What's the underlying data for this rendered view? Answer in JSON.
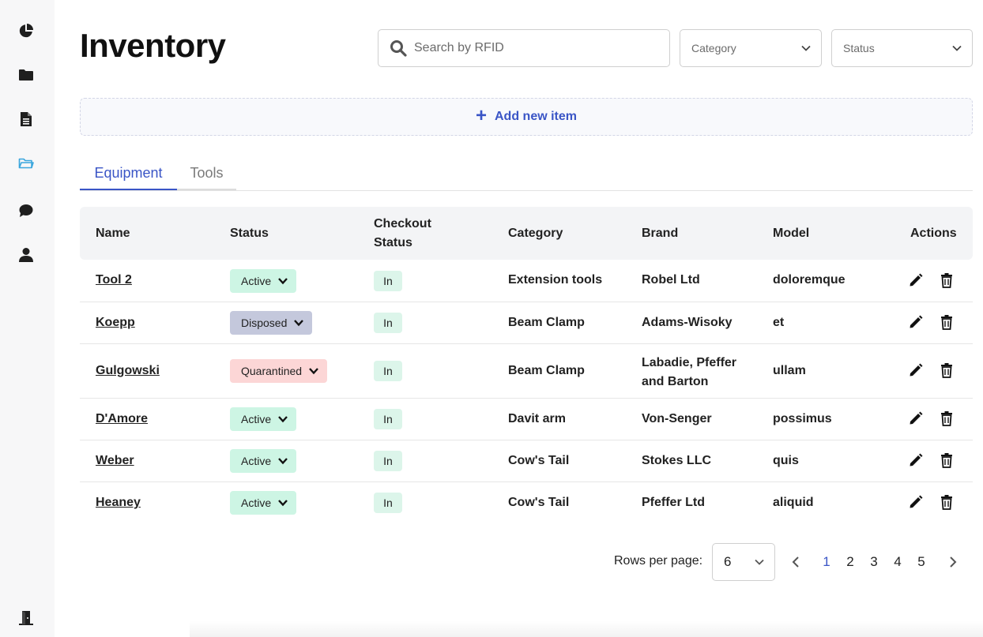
{
  "sidebar": {
    "items": [
      {
        "icon": "pie-chart-icon",
        "color": "#1f1f1f"
      },
      {
        "icon": "folder-icon",
        "color": "#1f1f1f"
      },
      {
        "icon": "document-icon",
        "color": "#1f1f1f"
      },
      {
        "icon": "folder-open-icon",
        "color": "#3aa6dd",
        "active": true
      },
      {
        "icon": "chat-icon",
        "color": "#1f1f1f"
      },
      {
        "icon": "user-icon",
        "color": "#1f1f1f"
      }
    ],
    "logout_icon": "door-exit-icon"
  },
  "header": {
    "title": "Inventory",
    "search_placeholder": "Search by RFID",
    "category_placeholder": "Category",
    "status_placeholder": "Status"
  },
  "add_item_label": "Add new item",
  "tabs": [
    {
      "label": "Equipment",
      "active": true
    },
    {
      "label": "Tools",
      "active": false
    }
  ],
  "table": {
    "columns": {
      "name": "Name",
      "status": "Status",
      "checkout_line1": "Checkout",
      "checkout_line2": "Status",
      "category": "Category",
      "brand": "Brand",
      "model": "Model",
      "actions": "Actions"
    },
    "rows": [
      {
        "name": "Tool 2",
        "status": "Active",
        "checkout": "In",
        "category": "Extension tools",
        "brand_line1": "Robel Ltd",
        "brand_line2": "",
        "model": "doloremque"
      },
      {
        "name": "Koepp",
        "status": "Disposed",
        "checkout": "In",
        "category": "Beam Clamp",
        "brand_line1": "Adams-Wisoky",
        "brand_line2": "",
        "model": "et"
      },
      {
        "name": "Gulgowski",
        "status": "Quarantined",
        "checkout": "In",
        "category": "Beam Clamp",
        "brand_line1": "Labadie, Pfeffer",
        "brand_line2": "and Barton",
        "model": "ullam"
      },
      {
        "name": "D'Amore",
        "status": "Active",
        "checkout": "In",
        "category": "Davit arm",
        "brand_line1": "Von-Senger",
        "brand_line2": "",
        "model": "possimus"
      },
      {
        "name": "Weber",
        "status": "Active",
        "checkout": "In",
        "category": "Cow's Tail",
        "brand_line1": "Stokes LLC",
        "brand_line2": "",
        "model": "quis"
      },
      {
        "name": "Heaney",
        "status": "Active",
        "checkout": "In",
        "category": "Cow's Tail",
        "brand_line1": "Pfeffer Ltd",
        "brand_line2": "",
        "model": "aliquid"
      }
    ]
  },
  "pagination": {
    "rows_per_page_label": "Rows per page:",
    "rows_per_page": "6",
    "pages": [
      "1",
      "2",
      "3",
      "4",
      "5"
    ],
    "current_page": "1"
  },
  "colors": {
    "accent": "#3a55c6",
    "active_pill": "#cdf5e4",
    "disposed_pill": "#c4c8dc",
    "quarantined_pill": "#fcd6d6",
    "checkout_badge": "#dcf5ea"
  }
}
